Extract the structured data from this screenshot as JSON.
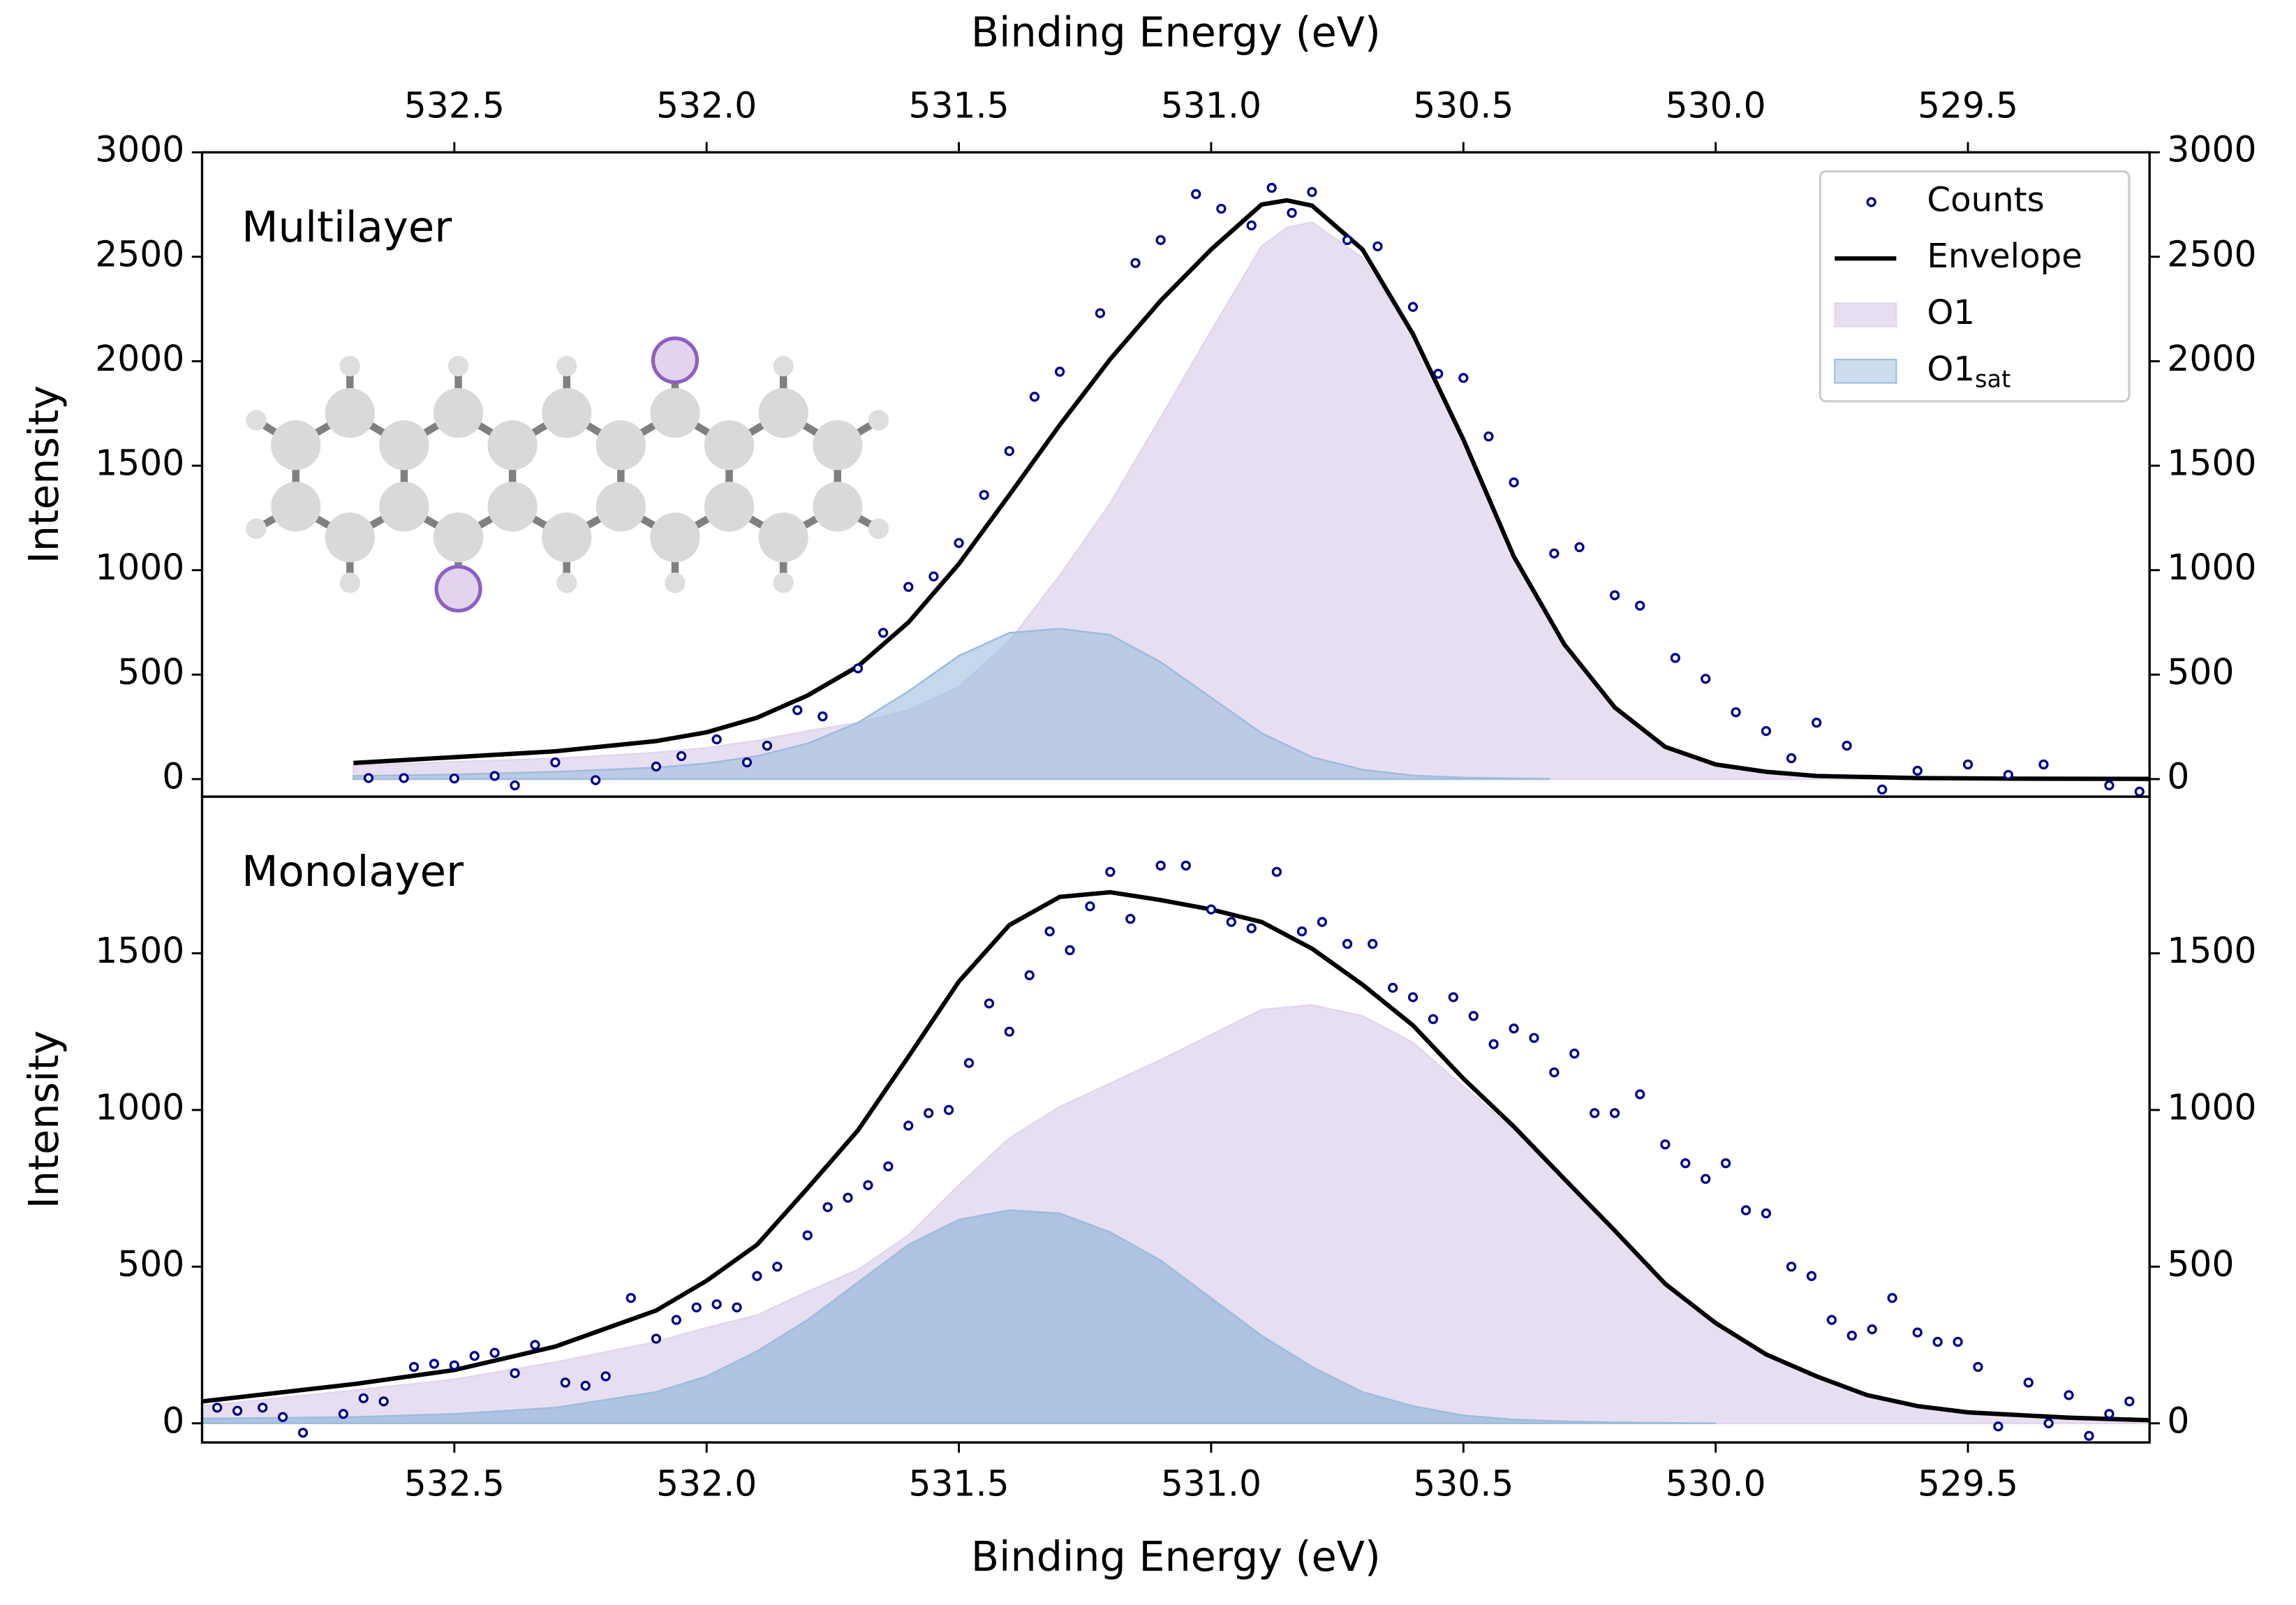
{
  "chart_data": [
    {
      "type": "line",
      "annotation": "Multilayer",
      "xlabel": "Binding Energy (eV)",
      "xaxis": "top",
      "ylabel": "Intensity",
      "xlim": [
        533.0,
        529.14
      ],
      "xticks": [
        532.5,
        {
          "value": 532,
          "label": "532.0"
        },
        531.5,
        {
          "value": 531,
          "label": "531.0"
        },
        530.5,
        {
          "value": 530,
          "label": "530.0"
        },
        529.5
      ],
      "ylim": [
        -84,
        3000
      ],
      "yticks": [
        0,
        500,
        1000,
        1500,
        2000,
        2500,
        3000
      ],
      "legend": "upper right",
      "series": [
        {
          "name": "Counts",
          "type": "scatter",
          "color": "#00008b",
          "x": [
            532.67,
            532.6,
            532.5,
            532.42,
            532.38,
            532.3,
            532.22,
            532.1,
            532.05,
            531.98,
            531.92,
            531.88,
            531.82,
            531.77,
            531.7,
            531.65,
            531.6,
            531.55,
            531.5,
            531.45,
            531.4,
            531.35,
            531.3,
            531.22,
            531.15,
            531.1,
            531.03,
            530.98,
            530.92,
            530.88,
            530.84,
            530.8,
            530.73,
            530.67,
            530.6,
            530.55,
            530.5,
            530.45,
            530.4,
            530.32,
            530.27,
            530.2,
            530.15,
            530.08,
            530.02,
            529.96,
            529.9,
            529.85,
            529.8,
            529.74,
            529.67,
            529.6,
            529.5,
            529.42,
            529.35,
            529.22,
            529.16
          ],
          "values": [
            5,
            5,
            3,
            15,
            -30,
            80,
            -5,
            60,
            110,
            190,
            80,
            160,
            330,
            300,
            530,
            700,
            920,
            970,
            1130,
            1360,
            1570,
            1830,
            1950,
            2230,
            2470,
            2580,
            2800,
            2730,
            2650,
            2830,
            2710,
            2810,
            2580,
            2550,
            2260,
            1940,
            1920,
            1640,
            1420,
            1080,
            1110,
            880,
            830,
            580,
            480,
            320,
            230,
            100,
            270,
            160,
            -50,
            40,
            70,
            20,
            70,
            -30,
            -60
          ]
        },
        {
          "name": "Envelope",
          "type": "line",
          "color": "#000000",
          "x": [
            532.7,
            532.5,
            532.3,
            532.1,
            532.0,
            531.9,
            531.8,
            531.7,
            531.6,
            531.5,
            531.4,
            531.3,
            531.2,
            531.1,
            531.0,
            530.9,
            530.85,
            530.8,
            530.7,
            530.6,
            530.5,
            530.4,
            530.3,
            530.2,
            530.1,
            530.0,
            529.9,
            529.8,
            529.6,
            529.4,
            529.14
          ],
          "values": [
            77,
            105,
            133,
            182,
            224,
            294,
            400,
            540,
            750,
            1030,
            1360,
            1695,
            2010,
            2290,
            2535,
            2750,
            2770,
            2745,
            2535,
            2130,
            1625,
            1065,
            645,
            343,
            154,
            70,
            35,
            15,
            5,
            2,
            1
          ]
        },
        {
          "name": "O1",
          "type": "area",
          "color": "#e2d6ee",
          "x": [
            532.7,
            532.5,
            532.3,
            532.1,
            532.0,
            531.9,
            531.8,
            531.7,
            531.6,
            531.5,
            531.4,
            531.3,
            531.2,
            531.1,
            531.0,
            530.9,
            530.85,
            530.8,
            530.7,
            530.6,
            530.5,
            530.4,
            530.3,
            530.2,
            530.1,
            530.0,
            529.9,
            529.8,
            529.6,
            529.4,
            529.14
          ],
          "values": [
            62,
            83,
            98,
            127,
            149,
            184,
            230,
            270,
            330,
            440,
            660,
            975,
            1320,
            1730,
            2145,
            2550,
            2640,
            2665,
            2495,
            2115,
            1617,
            1062,
            644,
            343,
            154,
            70,
            35,
            15,
            5,
            2,
            1
          ]
        },
        {
          "name": "O1",
          "subscript": "sat",
          "type": "area",
          "color": "#9dbcdd",
          "x": [
            532.7,
            532.5,
            532.3,
            532.1,
            532.0,
            531.9,
            531.8,
            531.7,
            531.6,
            531.5,
            531.4,
            531.3,
            531.2,
            531.1,
            531.0,
            530.9,
            530.8,
            530.7,
            530.6,
            530.5,
            530.4,
            530.33
          ],
          "values": [
            15,
            22,
            35,
            55,
            75,
            110,
            170,
            270,
            420,
            590,
            700,
            720,
            690,
            560,
            390,
            220,
            105,
            45,
            17,
            7,
            3,
            1
          ]
        }
      ]
    },
    {
      "type": "line",
      "annotation": "Monolayer",
      "xlabel": "Binding Energy (eV)",
      "xaxis": "bottom",
      "ylabel": "Intensity",
      "xlim": [
        533.0,
        529.14
      ],
      "xticks": [
        532.5,
        {
          "value": 532,
          "label": "532.0"
        },
        531.5,
        {
          "value": 531,
          "label": "531.0"
        },
        530.5,
        {
          "value": 530,
          "label": "530.0"
        },
        529.5
      ],
      "ylim": [
        -61,
        2000
      ],
      "yticks": [
        0,
        500,
        1000,
        1500
      ],
      "series": [
        {
          "type": "scatter",
          "color": "#00008b",
          "x": [
            532.97,
            532.93,
            532.88,
            532.84,
            532.8,
            532.72,
            532.68,
            532.64,
            532.58,
            532.54,
            532.5,
            532.46,
            532.42,
            532.38,
            532.34,
            532.28,
            532.24,
            532.2,
            532.15,
            532.1,
            532.06,
            532.02,
            531.98,
            531.94,
            531.9,
            531.86,
            531.8,
            531.76,
            531.72,
            531.68,
            531.64,
            531.6,
            531.56,
            531.52,
            531.48,
            531.44,
            531.4,
            531.36,
            531.32,
            531.28,
            531.24,
            531.2,
            531.16,
            531.1,
            531.05,
            531.0,
            530.96,
            530.92,
            530.87,
            530.82,
            530.78,
            530.73,
            530.68,
            530.64,
            530.6,
            530.56,
            530.52,
            530.48,
            530.44,
            530.4,
            530.36,
            530.32,
            530.28,
            530.24,
            530.2,
            530.15,
            530.1,
            530.06,
            530.02,
            529.98,
            529.94,
            529.9,
            529.85,
            529.81,
            529.77,
            529.73,
            529.69,
            529.65,
            529.6,
            529.56,
            529.52,
            529.48,
            529.44,
            529.38,
            529.34,
            529.3,
            529.26,
            529.22,
            529.18
          ],
          "values": [
            50,
            40,
            50,
            20,
            -30,
            30,
            80,
            70,
            180,
            190,
            185,
            215,
            225,
            160,
            250,
            130,
            120,
            150,
            400,
            270,
            330,
            370,
            380,
            370,
            470,
            500,
            600,
            690,
            720,
            760,
            820,
            950,
            990,
            1000,
            1150,
            1340,
            1250,
            1430,
            1570,
            1510,
            1650,
            1760,
            1610,
            1780,
            1780,
            1640,
            1600,
            1580,
            1760,
            1570,
            1600,
            1530,
            1530,
            1390,
            1360,
            1290,
            1360,
            1300,
            1210,
            1260,
            1230,
            1120,
            1180,
            990,
            990,
            1050,
            890,
            830,
            780,
            830,
            680,
            670,
            500,
            470,
            330,
            280,
            300,
            400,
            290,
            260,
            260,
            180,
            -10,
            130,
            0,
            90,
            -40,
            30,
            70
          ]
        },
        {
          "type": "line",
          "color": "#000000",
          "x": [
            533.0,
            532.7,
            532.5,
            532.3,
            532.1,
            532.0,
            531.9,
            531.8,
            531.7,
            531.6,
            531.5,
            531.4,
            531.3,
            531.2,
            531.1,
            531.0,
            530.9,
            530.8,
            530.7,
            530.6,
            530.5,
            530.4,
            530.3,
            530.2,
            530.1,
            530.0,
            529.9,
            529.8,
            529.7,
            529.6,
            529.5,
            529.3,
            529.14
          ],
          "values": [
            70,
            125,
            170,
            245,
            360,
            455,
            570,
            750,
            935,
            1170,
            1410,
            1590,
            1680,
            1695,
            1670,
            1640,
            1600,
            1515,
            1400,
            1270,
            1100,
            947,
            780,
            615,
            445,
            320,
            220,
            150,
            90,
            55,
            35,
            18,
            10
          ]
        },
        {
          "type": "area",
          "color": "#e2d6ee",
          "x": [
            533.0,
            532.7,
            532.5,
            532.3,
            532.1,
            532.0,
            531.9,
            531.8,
            531.7,
            531.6,
            531.5,
            531.4,
            531.3,
            531.2,
            531.1,
            531.0,
            530.9,
            530.8,
            530.7,
            530.6,
            530.5,
            530.4,
            530.3,
            530.2,
            530.1,
            530.0,
            529.9,
            529.8,
            529.7,
            529.6,
            529.5,
            529.3,
            529.14
          ],
          "values": [
            55,
            105,
            140,
            195,
            260,
            305,
            345,
            420,
            490,
            600,
            760,
            910,
            1010,
            1085,
            1160,
            1240,
            1320,
            1335,
            1300,
            1215,
            1075,
            935,
            775,
            612,
            444,
            320,
            220,
            150,
            90,
            55,
            35,
            18,
            10
          ]
        },
        {
          "type": "area",
          "color": "#9dbcdd",
          "x": [
            533.0,
            532.7,
            532.5,
            532.3,
            532.1,
            532.0,
            531.9,
            531.8,
            531.7,
            531.6,
            531.5,
            531.4,
            531.3,
            531.2,
            531.1,
            531.0,
            530.9,
            530.8,
            530.7,
            530.6,
            530.5,
            530.4,
            530.3,
            530.2,
            530.0
          ],
          "values": [
            15,
            20,
            30,
            50,
            100,
            150,
            230,
            330,
            450,
            570,
            650,
            680,
            670,
            610,
            520,
            400,
            280,
            180,
            100,
            55,
            25,
            12,
            6,
            3,
            0
          ]
        }
      ]
    }
  ]
}
